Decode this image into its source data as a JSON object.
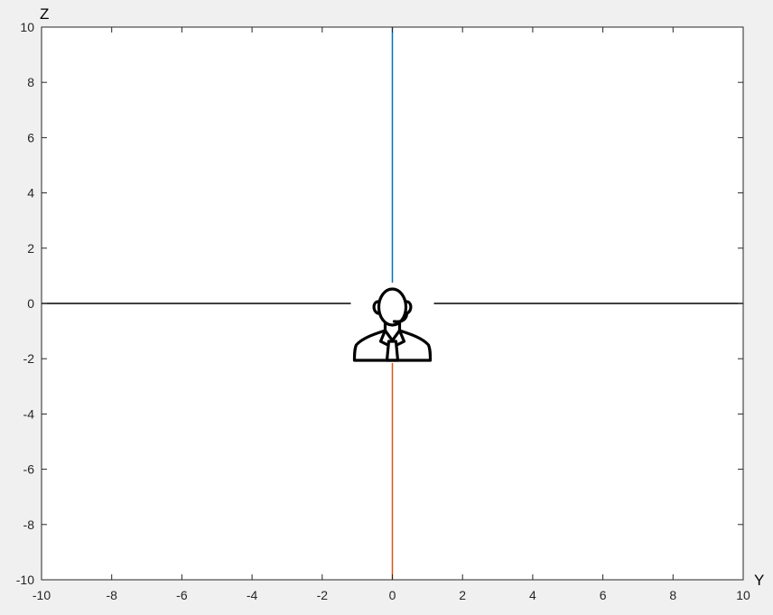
{
  "chart_data": {
    "type": "line",
    "xlabel": "Y",
    "ylabel": "Z",
    "xlim": [
      -10,
      10
    ],
    "ylim": [
      -10,
      10
    ],
    "x_ticks": [
      -10,
      -8,
      -6,
      -4,
      -2,
      0,
      2,
      4,
      6,
      8,
      10
    ],
    "y_ticks": [
      -10,
      -8,
      -6,
      -4,
      -2,
      0,
      2,
      4,
      6,
      8,
      10
    ],
    "grid": false,
    "series": [
      {
        "color": "#0072bd",
        "x": [
          0,
          0
        ],
        "y": [
          0,
          10
        ]
      },
      {
        "color": "#d95319",
        "x": [
          0,
          0
        ],
        "y": [
          0,
          -10
        ]
      },
      {
        "color": "#000000",
        "x": [
          -10,
          10
        ],
        "y": [
          0,
          0
        ]
      }
    ],
    "marker": {
      "icon": "person-headset-icon",
      "x": 0,
      "y": 0
    }
  },
  "colors": {
    "figure_background": "#f0f0f0",
    "axes_background": "#ffffff",
    "axes_edge": "#262626"
  }
}
